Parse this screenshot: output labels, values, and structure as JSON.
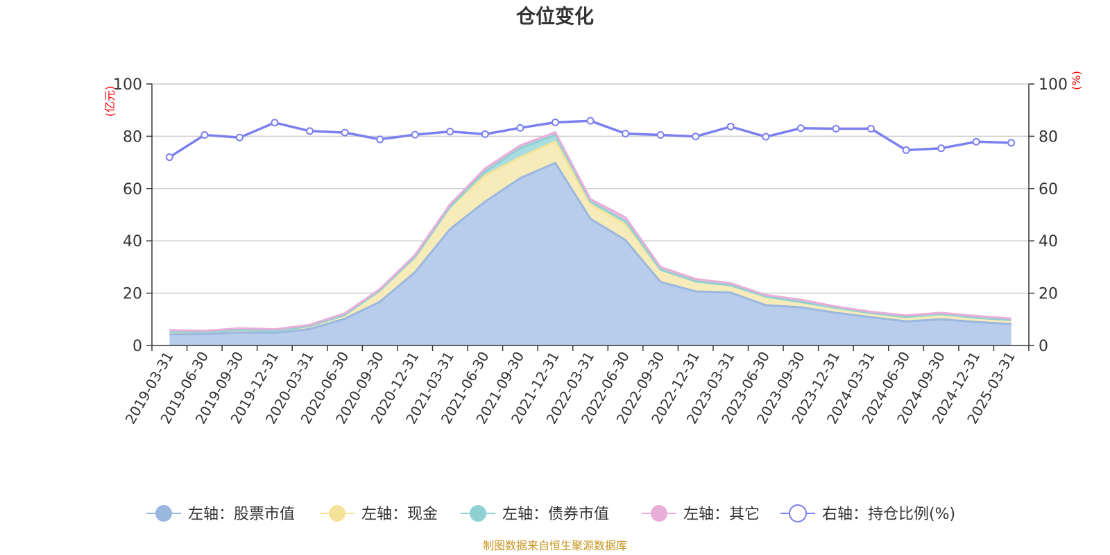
{
  "chart_data": {
    "type": "area",
    "title": "仓位变化",
    "left_unit": "(亿元)",
    "right_unit": "(%)",
    "left_ylim": [
      0,
      100
    ],
    "right_ylim": [
      0,
      100
    ],
    "left_yticks": [
      0,
      20,
      40,
      60,
      80,
      100
    ],
    "right_yticks": [
      0,
      20,
      40,
      60,
      80,
      100
    ],
    "grid": true,
    "stacked": true,
    "legend_position": "bottom",
    "categories": [
      "2019-03-31",
      "2019-06-30",
      "2019-09-30",
      "2019-12-31",
      "2020-03-31",
      "2020-06-30",
      "2020-09-30",
      "2020-12-31",
      "2021-03-31",
      "2021-06-30",
      "2021-09-30",
      "2021-12-31",
      "2022-03-31",
      "2022-06-30",
      "2022-09-30",
      "2022-12-31",
      "2023-03-31",
      "2023-06-30",
      "2023-09-30",
      "2023-12-31",
      "2024-03-31",
      "2024-06-30",
      "2024-09-30",
      "2024-12-31",
      "2025-03-31"
    ],
    "series": [
      {
        "name": "左轴：股票市值",
        "axis": "left",
        "color": "#9ab7e0",
        "fill": "#b8cdeb",
        "values": [
          4.3,
          4.3,
          5.0,
          4.8,
          6.3,
          10.2,
          16.7,
          28.0,
          44.5,
          55.0,
          64.0,
          69.8,
          48.5,
          40.3,
          24.3,
          20.7,
          20.2,
          15.4,
          14.6,
          12.5,
          10.8,
          9.2,
          10.0,
          9.0,
          8.2
        ]
      },
      {
        "name": "左轴：现金",
        "axis": "left",
        "color": "#f5e39a",
        "fill": "#f7ebb9",
        "values": [
          1.0,
          0.8,
          1.0,
          0.8,
          1.1,
          1.5,
          4.3,
          5.8,
          8.5,
          10.0,
          8.0,
          8.2,
          5.5,
          6.0,
          4.7,
          3.8,
          2.8,
          3.3,
          2.0,
          1.9,
          1.6,
          1.7,
          2.0,
          1.6,
          1.5
        ]
      },
      {
        "name": "左轴：债券市值",
        "axis": "left",
        "color": "#8fd0d3",
        "fill": "#a9dde0",
        "values": [
          0.0,
          0.0,
          0.0,
          0.0,
          0.0,
          0.0,
          0.0,
          0.0,
          0.0,
          1.5,
          3.5,
          2.5,
          1.0,
          1.2,
          0.0,
          0.0,
          0.0,
          0.0,
          0.0,
          0.0,
          0.0,
          0.0,
          0.0,
          0.0,
          0.0
        ]
      },
      {
        "name": "左轴：其它",
        "axis": "left",
        "color": "#e8aed8",
        "fill": "#edc2e3",
        "values": [
          0.6,
          0.5,
          0.6,
          0.6,
          0.5,
          0.6,
          0.6,
          0.8,
          1.0,
          1.2,
          1.0,
          1.0,
          1.0,
          1.5,
          1.0,
          0.9,
          0.8,
          0.6,
          0.9,
          0.5,
          0.5,
          0.6,
          0.5,
          0.7,
          0.6
        ]
      },
      {
        "name": "右轴：持仓比例(%)",
        "axis": "right",
        "color": "#7b7ff0",
        "values": [
          72.0,
          80.5,
          79.5,
          85.2,
          82.0,
          81.4,
          78.8,
          80.6,
          81.8,
          80.8,
          83.2,
          85.3,
          85.9,
          81.0,
          80.5,
          79.9,
          83.7,
          79.8,
          83.1,
          82.9,
          82.9,
          74.7,
          75.4,
          77.9,
          77.5
        ]
      }
    ],
    "source": "制图数据来自恒生聚源数据库"
  }
}
